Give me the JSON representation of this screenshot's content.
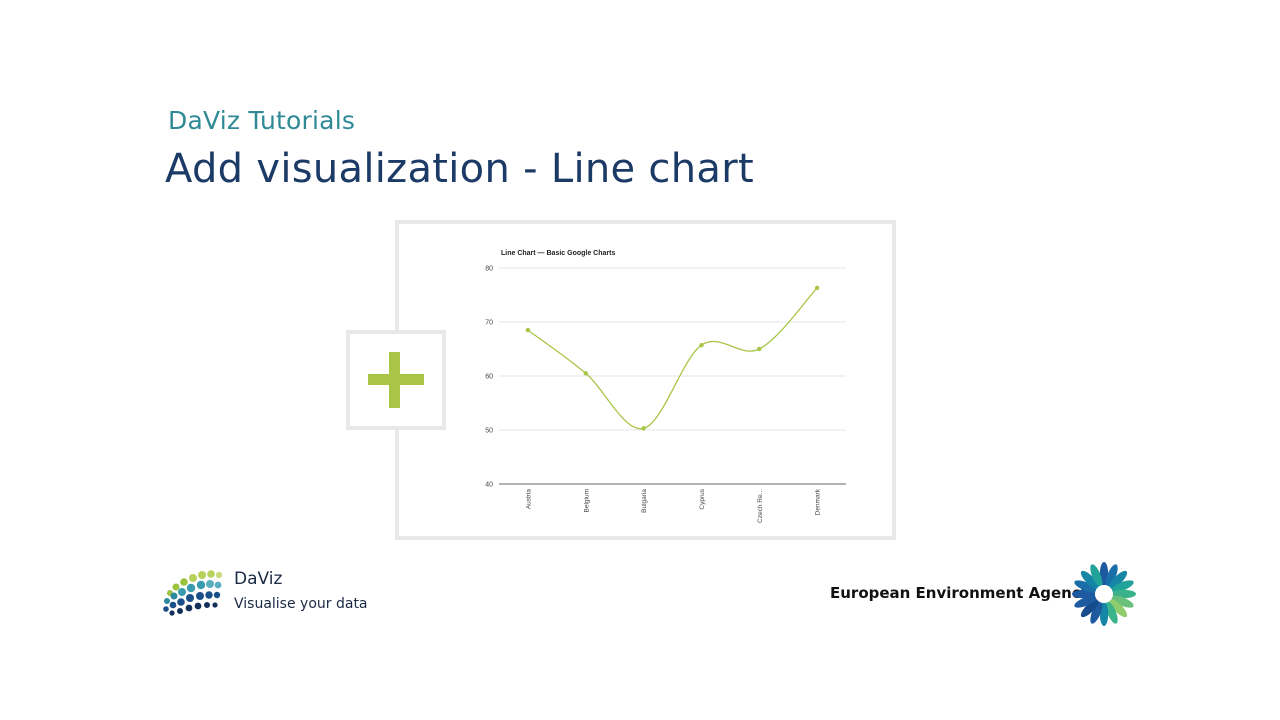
{
  "slide": {
    "subtitle": "DaViz Tutorials",
    "title": "Add visualization - Line chart"
  },
  "add_icon": {
    "glyph": "+",
    "color": "#a8c545"
  },
  "chart_data": {
    "type": "line",
    "title": "Line Chart — Basic Google Charts",
    "categories": [
      "Austria",
      "Belgium",
      "Bulgaria",
      "Cyprus",
      "Czech Re...",
      "Denmark"
    ],
    "values": [
      68.5,
      60.5,
      50.3,
      65.7,
      65.0,
      76.3
    ],
    "ylim": [
      40,
      80
    ],
    "yticks": [
      40,
      50,
      60,
      70,
      80
    ],
    "grid": true,
    "line_color": "#a8c545"
  },
  "footer": {
    "daviz_name": "DaViz",
    "daviz_tagline": "Visualise your data",
    "eea_name": "European Environment Agency"
  }
}
